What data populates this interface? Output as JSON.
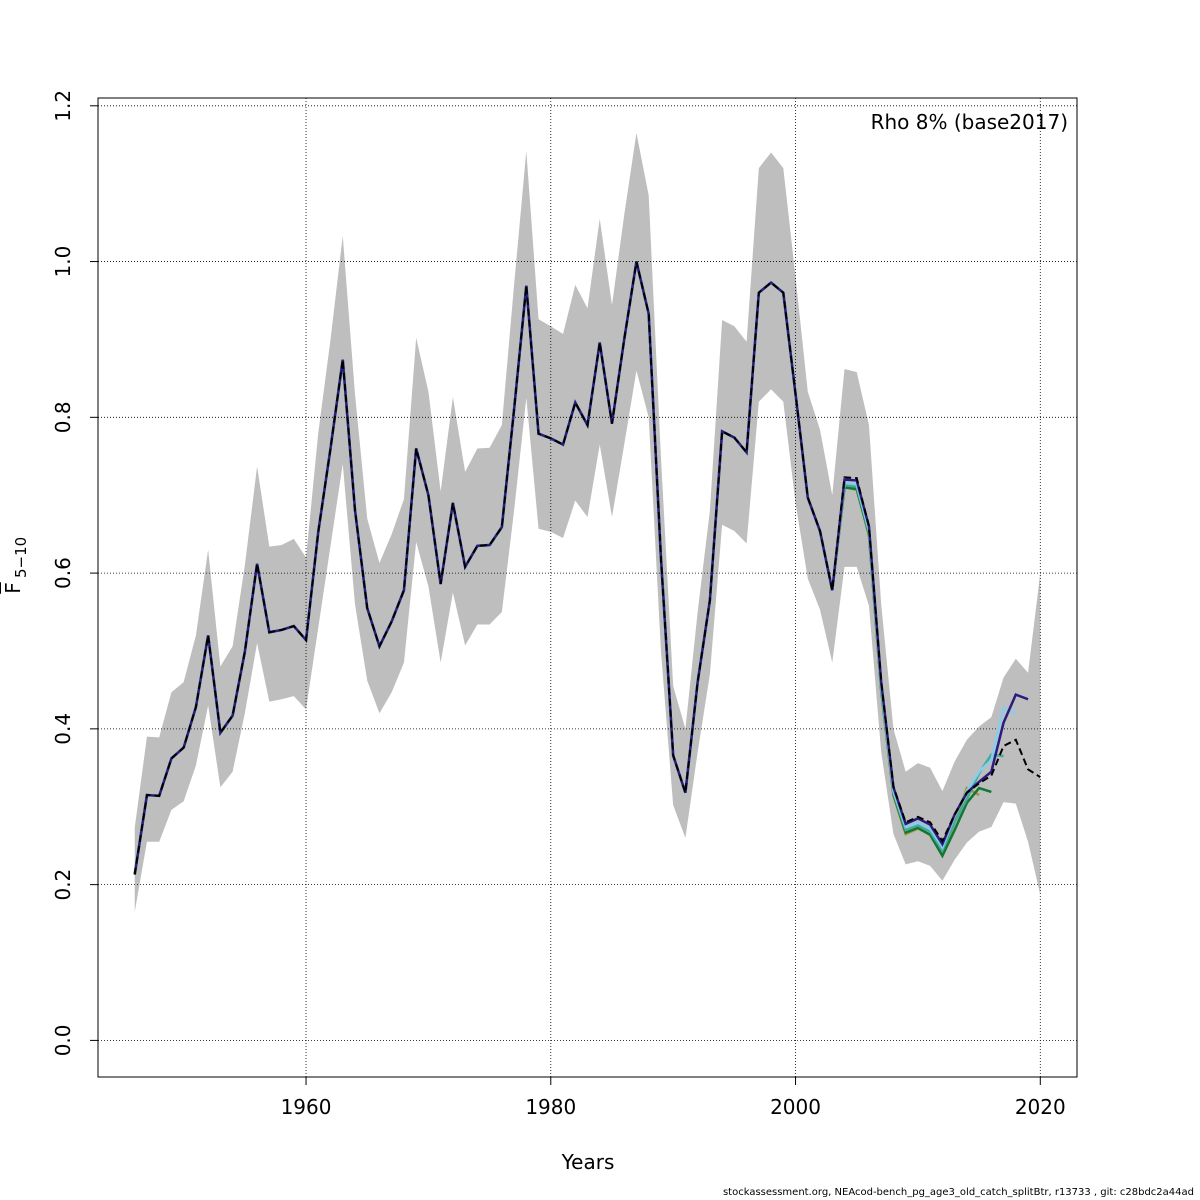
{
  "chart_data": {
    "type": "line",
    "xlabel": "Years",
    "ylabel_main": "F",
    "ylabel_sub": "5−10",
    "annotation": "Rho 8% (base2017)",
    "xlim": [
      1943,
      2023
    ],
    "ylim": [
      -0.047,
      1.21
    ],
    "x_ticks": [
      1960,
      1980,
      2000,
      2020
    ],
    "y_ticks": [
      "0.0",
      "0.2",
      "0.4",
      "0.6",
      "0.8",
      "1.0",
      "1.2"
    ],
    "grid": true,
    "x_start": 1946,
    "base": {
      "color": "#000000",
      "style": "dashed",
      "values": [
        0.213,
        0.315,
        0.314,
        0.362,
        0.376,
        0.428,
        0.52,
        0.395,
        0.417,
        0.499,
        0.612,
        0.524,
        0.527,
        0.532,
        0.514,
        0.653,
        0.76,
        0.874,
        0.681,
        0.555,
        0.506,
        0.538,
        0.578,
        0.76,
        0.7,
        0.586,
        0.69,
        0.608,
        0.635,
        0.636,
        0.659,
        0.81,
        0.969,
        0.779,
        0.773,
        0.765,
        0.819,
        0.79,
        0.896,
        0.792,
        0.9,
        1.0,
        0.933,
        0.62,
        0.366,
        0.318,
        0.46,
        0.565,
        0.782,
        0.774,
        0.755,
        0.96,
        0.973,
        0.96,
        0.83,
        0.697,
        0.654,
        0.578,
        0.723,
        0.722,
        0.66,
        0.46,
        0.326,
        0.28,
        0.287,
        0.28,
        0.256,
        0.29,
        0.318,
        0.33,
        0.34,
        0.378,
        0.386,
        0.348,
        0.338
      ]
    },
    "ci_upper": [
      0.273,
      0.39,
      0.389,
      0.447,
      0.46,
      0.52,
      0.63,
      0.48,
      0.506,
      0.61,
      0.737,
      0.634,
      0.636,
      0.644,
      0.62,
      0.78,
      0.9,
      1.033,
      0.83,
      0.67,
      0.613,
      0.65,
      0.695,
      0.902,
      0.833,
      0.705,
      0.826,
      0.73,
      0.76,
      0.761,
      0.79,
      0.97,
      1.142,
      0.926,
      0.917,
      0.907,
      0.97,
      0.94,
      1.055,
      0.944,
      1.06,
      1.165,
      1.085,
      0.75,
      0.455,
      0.4,
      0.55,
      0.68,
      0.925,
      0.917,
      0.897,
      1.12,
      1.14,
      1.12,
      0.98,
      0.833,
      0.784,
      0.7,
      0.862,
      0.858,
      0.79,
      0.56,
      0.4,
      0.345,
      0.356,
      0.35,
      0.32,
      0.358,
      0.386,
      0.403,
      0.415,
      0.466,
      0.49,
      0.472,
      0.6
    ],
    "ci_lower": [
      0.165,
      0.255,
      0.255,
      0.296,
      0.307,
      0.353,
      0.43,
      0.325,
      0.345,
      0.42,
      0.51,
      0.435,
      0.438,
      0.442,
      0.425,
      0.53,
      0.635,
      0.74,
      0.56,
      0.462,
      0.42,
      0.447,
      0.485,
      0.64,
      0.583,
      0.485,
      0.575,
      0.507,
      0.534,
      0.534,
      0.55,
      0.68,
      0.825,
      0.657,
      0.653,
      0.645,
      0.693,
      0.672,
      0.765,
      0.672,
      0.765,
      0.86,
      0.8,
      0.5,
      0.302,
      0.26,
      0.37,
      0.47,
      0.662,
      0.654,
      0.638,
      0.82,
      0.836,
      0.82,
      0.69,
      0.593,
      0.553,
      0.485,
      0.608,
      0.608,
      0.558,
      0.37,
      0.265,
      0.226,
      0.23,
      0.224,
      0.205,
      0.232,
      0.254,
      0.268,
      0.274,
      0.306,
      0.304,
      0.255,
      0.187
    ],
    "ci_color": "#bebebe",
    "peels": [
      {
        "color": "#2b1b7e",
        "x_start": 2004,
        "values": [
          0.72,
          0.719,
          0.66,
          0.46,
          0.325,
          0.278,
          0.285,
          0.277,
          0.252,
          0.29,
          0.318,
          0.332,
          0.345,
          0.408,
          0.444,
          0.438
        ]
      },
      {
        "color": "#88ccee",
        "x_start": 2004,
        "values": [
          0.716,
          0.714,
          0.655,
          0.455,
          0.32,
          0.274,
          0.28,
          0.272,
          0.248,
          0.288,
          0.32,
          0.345,
          0.36,
          0.427,
          0.42
        ]
      },
      {
        "color": "#44aa99",
        "x_start": 2004,
        "values": [
          0.713,
          0.711,
          0.652,
          0.452,
          0.318,
          0.27,
          0.276,
          0.268,
          0.244,
          0.28,
          0.31,
          0.343,
          0.367,
          0.365
        ]
      },
      {
        "color": "#117733",
        "x_start": 2004,
        "values": [
          0.71,
          0.708,
          0.65,
          0.45,
          0.316,
          0.267,
          0.273,
          0.264,
          0.237,
          0.27,
          0.305,
          0.324,
          0.319
        ]
      },
      {
        "color": "#999933",
        "x_start": 2004,
        "values": [
          0.71,
          0.707,
          0.648,
          0.448,
          0.314,
          0.265,
          0.272,
          0.264,
          0.238,
          0.28,
          0.324,
          0.315
        ]
      }
    ]
  },
  "footer": "stockassessment.org, NEAcod-bench_pg_age3_old_catch_splitBtr, r13733 , git: c28bdc2a44ad"
}
